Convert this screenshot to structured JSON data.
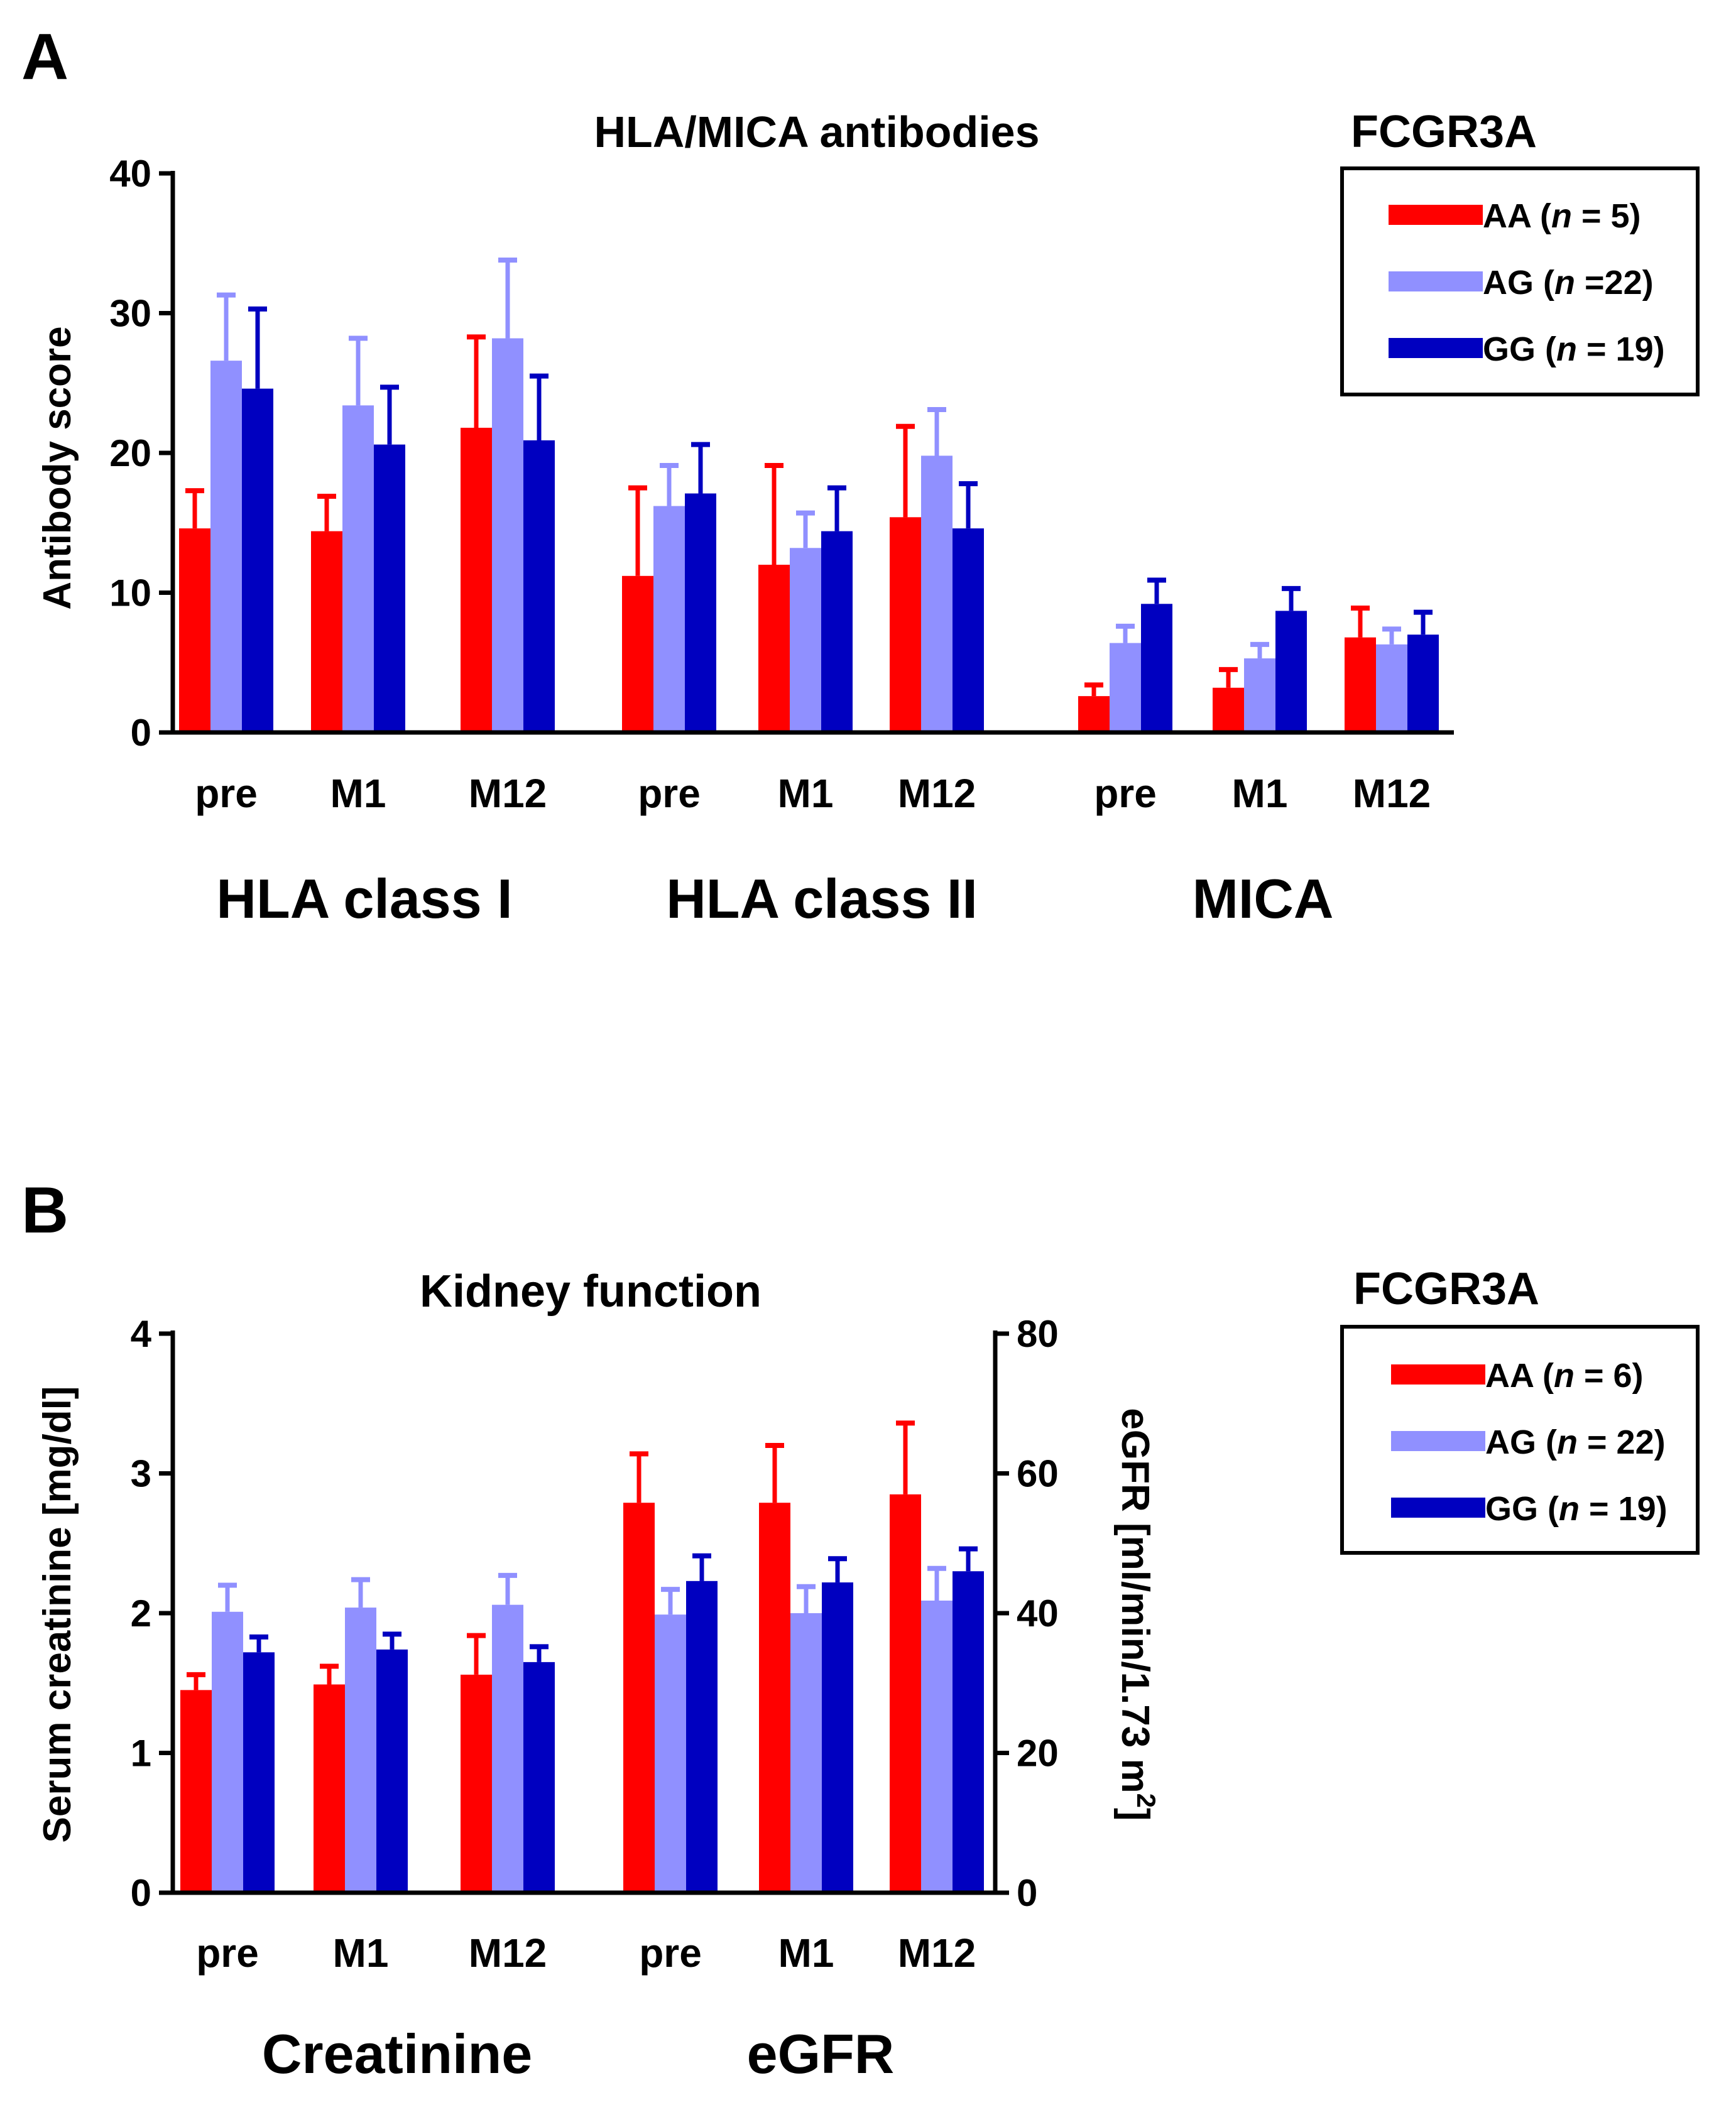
{
  "colors": {
    "AA": "#ff0000",
    "AG": "#9090ff",
    "GG": "#0000c0",
    "axis": "#000000"
  },
  "chart_data": [
    {
      "panel": "A",
      "type": "bar",
      "title": "HLA/MICA antibodies",
      "ylabel": "Antibody score",
      "ylim": [
        0,
        40
      ],
      "yticks": [
        "0",
        "10",
        "20",
        "30",
        "40"
      ],
      "categories": [
        "pre",
        "M1",
        "M12",
        "pre",
        "M1",
        "M12",
        "pre",
        "M1",
        "M12"
      ],
      "groups": [
        "HLA class I",
        "HLA class II",
        "MICA"
      ],
      "series": [
        {
          "name": "AA",
          "values": [
            14.6,
            14.4,
            21.8,
            11.2,
            12.0,
            15.4,
            2.6,
            3.2,
            6.8
          ],
          "errors": [
            2.7,
            2.5,
            6.5,
            6.3,
            7.1,
            6.5,
            0.8,
            1.3,
            2.1
          ]
        },
        {
          "name": "AG",
          "values": [
            26.6,
            23.4,
            28.2,
            16.2,
            13.2,
            19.8,
            6.4,
            5.3,
            6.3
          ],
          "errors": [
            4.7,
            4.8,
            5.6,
            2.9,
            2.5,
            3.3,
            1.2,
            1.0,
            1.1
          ]
        },
        {
          "name": "GG",
          "values": [
            24.6,
            20.6,
            20.9,
            17.1,
            14.4,
            14.6,
            9.2,
            8.7,
            7.0
          ],
          "errors": [
            5.7,
            4.1,
            4.6,
            3.5,
            3.1,
            3.2,
            1.7,
            1.6,
            1.6
          ]
        }
      ],
      "legend": {
        "title": "FCGR3A",
        "entries": [
          {
            "label": "AA (",
            "italic": "n",
            "suffix": " = 5)"
          },
          {
            "label": "AG (",
            "italic": "n",
            "suffix": " =22)"
          },
          {
            "label": "GG (",
            "italic": "n",
            "suffix": " = 19)"
          }
        ]
      }
    },
    {
      "panel": "B",
      "type": "bar",
      "title": "Kidney function",
      "ylabel": "Serum creatinine [mg/dl]",
      "ylim": [
        0,
        4
      ],
      "yticks": [
        "0",
        "1",
        "2",
        "3",
        "4"
      ],
      "y2label": "eGFR [ml/min/1.73 m",
      "y2label_sup": "2",
      "y2label_end": "]",
      "y2lim": [
        0,
        80
      ],
      "y2ticks": [
        "0",
        "20",
        "40",
        "60",
        "80"
      ],
      "categories": [
        "pre",
        "M1",
        "M12",
        "pre",
        "M1",
        "M12"
      ],
      "groups": [
        "Creatinine",
        "eGFR"
      ],
      "series": [
        {
          "name": "AA",
          "values": [
            1.45,
            1.49,
            1.56,
            2.79,
            2.79,
            2.85
          ],
          "errors": [
            0.11,
            0.13,
            0.28,
            0.35,
            0.41,
            0.51
          ]
        },
        {
          "name": "AG",
          "values": [
            2.01,
            2.04,
            2.06,
            1.99,
            2.0,
            2.09
          ],
          "errors": [
            0.19,
            0.2,
            0.21,
            0.18,
            0.19,
            0.23
          ]
        },
        {
          "name": "GG",
          "values": [
            1.72,
            1.74,
            1.65,
            2.23,
            2.22,
            2.3
          ],
          "errors": [
            0.11,
            0.11,
            0.11,
            0.18,
            0.17,
            0.16
          ]
        }
      ],
      "legend": {
        "title": "FCGR3A",
        "entries": [
          {
            "label": "AA (",
            "italic": "n",
            "suffix": " = 6)"
          },
          {
            "label": "AG (",
            "italic": "n",
            "suffix": " = 22)"
          },
          {
            "label": "GG (",
            "italic": "n",
            "suffix": " = 19)"
          }
        ]
      }
    }
  ]
}
